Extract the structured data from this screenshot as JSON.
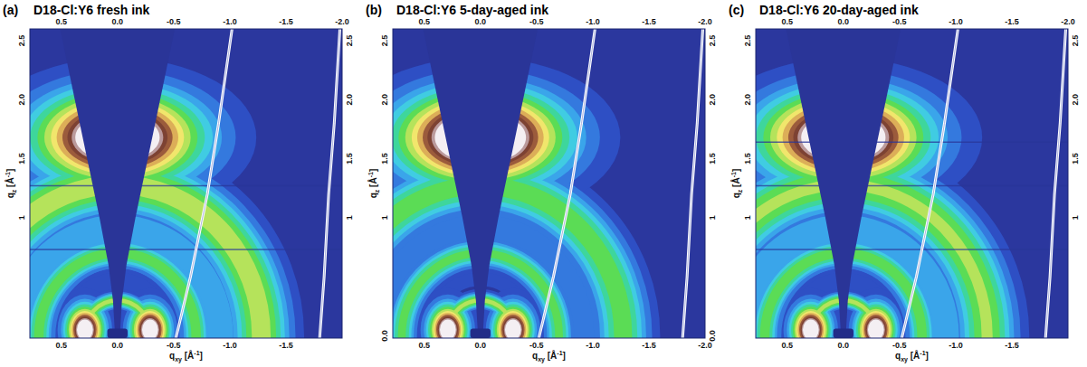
{
  "chart_data": [
    {
      "type": "heatmap",
      "letter": "(a)",
      "title": "D18-Cl:Y6 fresh ink",
      "xlabel": {
        "text": "q",
        "sub": "xy",
        "unit": " [Å",
        "sup": "-1",
        "end": "]"
      },
      "ylabel": {
        "text": "q",
        "sub": "z",
        "unit": " [Å",
        "sup": "-1",
        "end": "]"
      },
      "xlim": [
        0.78,
        -2.0
      ],
      "ylim": [
        -0.02,
        2.6
      ],
      "xticks": [
        0.5,
        {
          "value": 0,
          "label": "0.0"
        },
        -0.5,
        {
          "value": -1,
          "label": "-1.0"
        },
        -1.5
      ],
      "x2ticks": [
        0.5,
        {
          "value": 0,
          "label": "0.0"
        },
        -0.5,
        {
          "value": -1,
          "label": "-1.0"
        },
        -1.5,
        {
          "value": -2,
          "label": "-2.0"
        }
      ],
      "yticks": [
        1,
        1.5,
        {
          "value": 2,
          "label": "2.0"
        },
        2.5
      ],
      "y2ticks": [
        1,
        1.5,
        {
          "value": 2,
          "label": "2.0"
        },
        2.5
      ],
      "rings": [
        {
          "q": 0.9,
          "width": 0.35,
          "intensity": 0.32
        },
        {
          "q": 1.28,
          "width": 0.19,
          "intensity": 0.68
        },
        {
          "q": 0.7,
          "width": 0.09,
          "intensity": 0.6
        },
        {
          "q": 0.3,
          "width": 0.05,
          "intensity": 0.66
        }
      ],
      "peaks": [
        {
          "qxy": 0.0,
          "qz": 1.68,
          "width_qxy": 0.55,
          "width_qz": 0.3,
          "intensity": 1.25
        },
        {
          "qxy": 0.29,
          "qz": 0.05,
          "width_qxy": 0.13,
          "width_qz": 0.16,
          "intensity": 1.15
        },
        {
          "qxy": -0.29,
          "qz": 0.05,
          "width_qxy": 0.13,
          "width_qz": 0.16,
          "intensity": 1.15
        }
      ],
      "wedge": [
        [
          -0.02,
          0.02
        ],
        [
          0.3,
          0.04
        ],
        [
          0.6,
          0.08
        ],
        [
          1.0,
          0.16
        ],
        [
          1.5,
          0.27
        ],
        [
          2.0,
          0.38
        ],
        [
          2.6,
          0.51
        ]
      ],
      "beamstop": {
        "qxy": [
          -0.09,
          0.09
        ],
        "qz": [
          -0.02,
          0.06
        ]
      },
      "arcs": [
        [
          [
            -1.02,
            2.6
          ],
          [
            -0.9,
            1.8
          ],
          [
            -0.8,
            1.2
          ],
          [
            -0.65,
            0.5
          ],
          [
            -0.52,
            -0.02
          ]
        ],
        [
          [
            -1.98,
            2.6
          ],
          [
            -1.93,
            1.8
          ],
          [
            -1.88,
            1.2
          ],
          [
            -1.84,
            0.5
          ],
          [
            -1.8,
            -0.02
          ]
        ]
      ],
      "detector_gaps": [
        1.27,
        0.73
      ]
    },
    {
      "type": "heatmap",
      "letter": "(b)",
      "title": "D18-Cl:Y6 5-day-aged ink",
      "xlabel": {
        "text": "q",
        "sub": "xy",
        "unit": " [Å",
        "sup": "-1",
        "end": "]"
      },
      "ylabel": {
        "text": "q",
        "sub": "z",
        "unit": " [Å",
        "sup": "-1",
        "end": "]"
      },
      "xlim": [
        0.78,
        -2.0
      ],
      "ylim": [
        -0.02,
        2.6
      ],
      "xticks": [
        0.5,
        {
          "value": 0,
          "label": "0.0"
        },
        -0.5,
        {
          "value": -1,
          "label": "-1.0"
        },
        -1.5,
        {
          "value": -2,
          "label": "-2.0"
        }
      ],
      "x2ticks": [
        0.5,
        {
          "value": 0,
          "label": "0.0"
        },
        -0.5,
        {
          "value": -1,
          "label": "-1.0"
        },
        -1.5,
        {
          "value": -2,
          "label": "-2.0"
        }
      ],
      "yticks": [
        {
          "value": 0,
          "label": "0.0"
        },
        1,
        1.5,
        {
          "value": 2,
          "label": "2.0"
        },
        2.5
      ],
      "y2ticks": [
        {
          "value": 0,
          "label": "0.0"
        },
        1,
        1.5,
        {
          "value": 2,
          "label": "2.0"
        },
        2.5
      ],
      "rings": [
        {
          "q": 0.9,
          "width": 0.33,
          "intensity": 0.3
        },
        {
          "q": 1.27,
          "width": 0.17,
          "intensity": 0.6
        },
        {
          "q": 0.7,
          "width": 0.09,
          "intensity": 0.58
        },
        {
          "q": 0.3,
          "width": 0.05,
          "intensity": 0.66
        }
      ],
      "peaks": [
        {
          "qxy": 0.0,
          "qz": 1.68,
          "width_qxy": 0.55,
          "width_qz": 0.3,
          "intensity": 1.3
        },
        {
          "qxy": 0.29,
          "qz": 0.05,
          "width_qxy": 0.13,
          "width_qz": 0.16,
          "intensity": 1.15
        },
        {
          "qxy": -0.29,
          "qz": 0.05,
          "width_qxy": 0.13,
          "width_qz": 0.16,
          "intensity": 1.15
        }
      ],
      "wedge": [
        [
          -0.02,
          0.02
        ],
        [
          0.3,
          0.04
        ],
        [
          0.6,
          0.08
        ],
        [
          1.0,
          0.16
        ],
        [
          1.5,
          0.27
        ],
        [
          2.0,
          0.38
        ],
        [
          2.6,
          0.51
        ]
      ],
      "beamstop": {
        "qxy": [
          -0.09,
          0.09
        ],
        "qz": [
          -0.02,
          0.06
        ]
      },
      "arcs": [
        [
          [
            -1.02,
            2.6
          ],
          [
            -0.9,
            1.8
          ],
          [
            -0.8,
            1.2
          ],
          [
            -0.65,
            0.5
          ],
          [
            -0.52,
            -0.02
          ]
        ],
        [
          [
            -1.98,
            2.6
          ],
          [
            -1.93,
            1.8
          ],
          [
            -1.88,
            1.2
          ],
          [
            -1.84,
            0.5
          ],
          [
            -1.8,
            -0.02
          ]
        ]
      ],
      "detector_gaps": []
    },
    {
      "type": "heatmap",
      "letter": "(c)",
      "title": "D18-Cl:Y6 20-day-aged ink",
      "xlabel": {
        "text": "q",
        "sub": "xy",
        "unit": " [Å",
        "sup": "-1",
        "end": "]"
      },
      "ylabel": {
        "text": "q",
        "sub": "z",
        "unit": " [Å",
        "sup": "-1",
        "end": "]"
      },
      "xlim": [
        0.78,
        -2.0
      ],
      "ylim": [
        -0.02,
        2.6
      ],
      "xticks": [
        0.5,
        {
          "value": 0,
          "label": "0.0"
        },
        -0.5,
        {
          "value": -1,
          "label": "-1.0"
        },
        -1.5
      ],
      "x2ticks": [
        0.5,
        {
          "value": 0,
          "label": "0.0"
        },
        -0.5,
        {
          "value": -1,
          "label": "-1.0"
        },
        -1.5,
        {
          "value": -2,
          "label": "-2.0"
        }
      ],
      "yticks": [
        1,
        1.5,
        {
          "value": 2,
          "label": "2.0"
        },
        2.5
      ],
      "y2ticks": [
        1,
        1.5,
        {
          "value": 2,
          "label": "2.0"
        },
        2.5
      ],
      "rings": [
        {
          "q": 0.9,
          "width": 0.35,
          "intensity": 0.32
        },
        {
          "q": 1.28,
          "width": 0.19,
          "intensity": 0.64
        },
        {
          "q": 0.7,
          "width": 0.09,
          "intensity": 0.6
        },
        {
          "q": 0.3,
          "width": 0.05,
          "intensity": 0.66
        }
      ],
      "peaks": [
        {
          "qxy": 0.0,
          "qz": 1.68,
          "width_qxy": 0.55,
          "width_qz": 0.3,
          "intensity": 1.25
        },
        {
          "qxy": 0.29,
          "qz": 0.05,
          "width_qxy": 0.13,
          "width_qz": 0.16,
          "intensity": 1.15
        },
        {
          "qxy": -0.29,
          "qz": 0.05,
          "width_qxy": 0.13,
          "width_qz": 0.16,
          "intensity": 1.15
        }
      ],
      "wedge": [
        [
          -0.02,
          0.02
        ],
        [
          0.3,
          0.04
        ],
        [
          0.6,
          0.08
        ],
        [
          1.0,
          0.16
        ],
        [
          1.5,
          0.27
        ],
        [
          2.0,
          0.38
        ],
        [
          2.6,
          0.51
        ]
      ],
      "beamstop": {
        "qxy": [
          -0.09,
          0.09
        ],
        "qz": [
          -0.02,
          0.06
        ]
      },
      "arcs": [
        [
          [
            -1.02,
            2.6
          ],
          [
            -0.9,
            1.8
          ],
          [
            -0.8,
            1.2
          ],
          [
            -0.65,
            0.5
          ],
          [
            -0.52,
            -0.02
          ]
        ],
        [
          [
            -1.98,
            2.6
          ],
          [
            -1.93,
            1.8
          ],
          [
            -1.88,
            1.2
          ],
          [
            -1.84,
            0.5
          ],
          [
            -1.8,
            -0.02
          ]
        ]
      ],
      "detector_gaps": [
        1.64,
        1.27,
        0.73
      ]
    }
  ]
}
